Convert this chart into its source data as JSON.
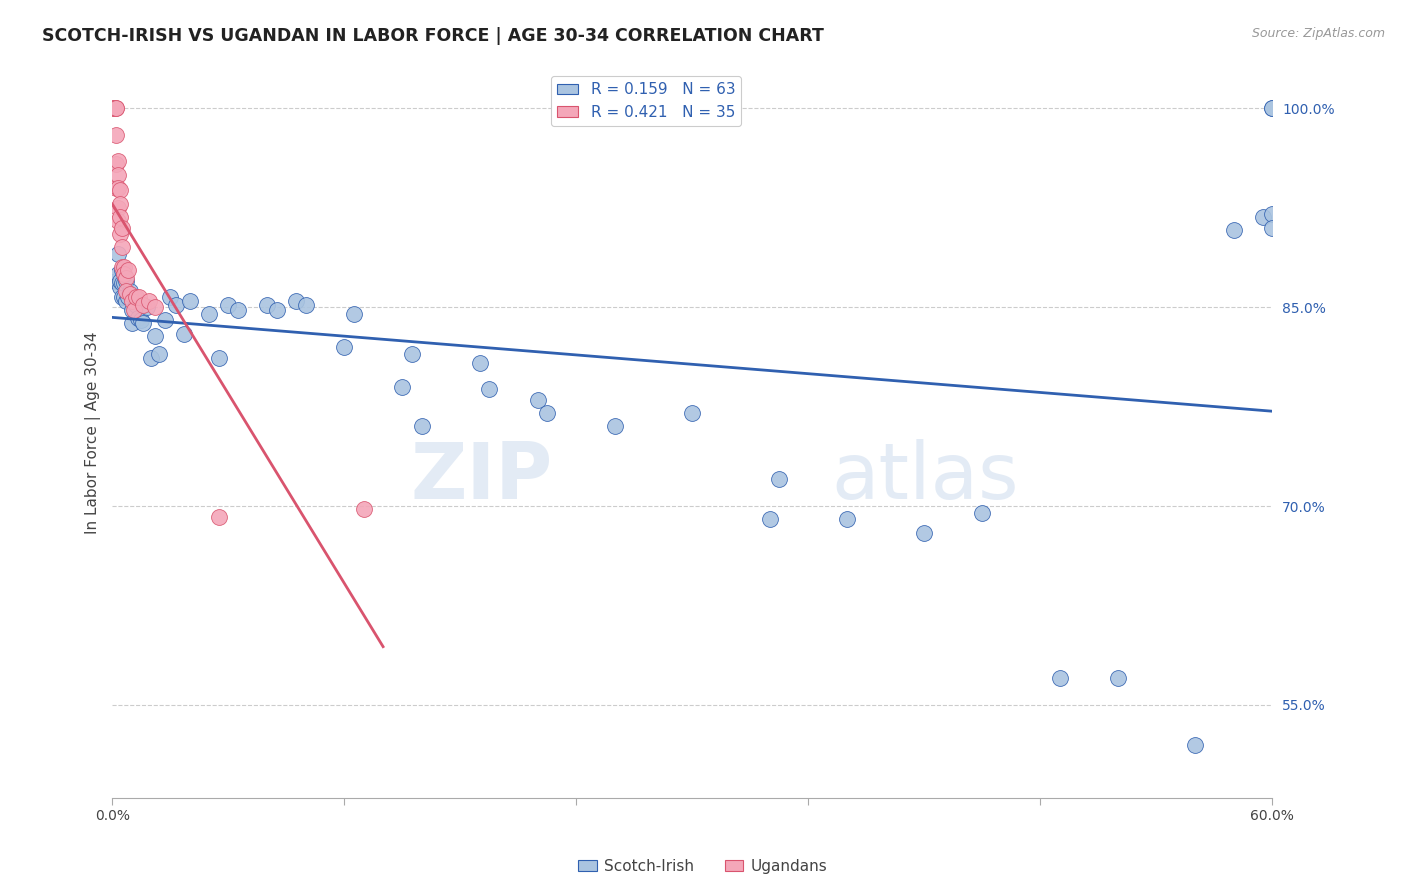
{
  "title": "SCOTCH-IRISH VS UGANDAN IN LABOR FORCE | AGE 30-34 CORRELATION CHART",
  "source": "Source: ZipAtlas.com",
  "ylabel": "In Labor Force | Age 30-34",
  "xlim": [
    0.0,
    0.6
  ],
  "ylim": [
    0.48,
    1.03
  ],
  "blue_R": 0.159,
  "blue_N": 63,
  "pink_R": 0.421,
  "pink_N": 35,
  "blue_color": "#aac4e0",
  "pink_color": "#f4a7b9",
  "blue_line_color": "#3060b0",
  "pink_line_color": "#d9546e",
  "grid_color": "#cccccc",
  "scotch_irish_x": [
    0.002,
    0.003,
    0.003,
    0.004,
    0.004,
    0.005,
    0.005,
    0.005,
    0.006,
    0.006,
    0.007,
    0.007,
    0.008,
    0.009,
    0.01,
    0.01,
    0.011,
    0.012,
    0.013,
    0.015,
    0.016,
    0.018,
    0.02,
    0.022,
    0.024,
    0.027,
    0.03,
    0.033,
    0.037,
    0.04,
    0.05,
    0.055,
    0.06,
    0.065,
    0.08,
    0.085,
    0.095,
    0.1,
    0.12,
    0.125,
    0.15,
    0.155,
    0.16,
    0.19,
    0.195,
    0.22,
    0.225,
    0.26,
    0.3,
    0.34,
    0.345,
    0.38,
    0.42,
    0.45,
    0.49,
    0.52,
    0.56,
    0.58,
    0.595,
    0.6,
    0.6,
    0.6,
    0.6
  ],
  "scotch_irish_y": [
    0.87,
    0.875,
    0.89,
    0.865,
    0.87,
    0.868,
    0.878,
    0.858,
    0.858,
    0.868,
    0.855,
    0.87,
    0.858,
    0.862,
    0.848,
    0.838,
    0.858,
    0.852,
    0.842,
    0.84,
    0.838,
    0.85,
    0.812,
    0.828,
    0.815,
    0.84,
    0.858,
    0.852,
    0.83,
    0.855,
    0.845,
    0.812,
    0.852,
    0.848,
    0.852,
    0.848,
    0.855,
    0.852,
    0.82,
    0.845,
    0.79,
    0.815,
    0.76,
    0.808,
    0.788,
    0.78,
    0.77,
    0.76,
    0.77,
    0.69,
    0.72,
    0.69,
    0.68,
    0.695,
    0.57,
    0.57,
    0.52,
    0.908,
    0.918,
    1.0,
    1.0,
    0.92,
    0.91
  ],
  "ugandan_x": [
    0.001,
    0.001,
    0.001,
    0.002,
    0.002,
    0.002,
    0.002,
    0.002,
    0.003,
    0.003,
    0.003,
    0.003,
    0.003,
    0.004,
    0.004,
    0.004,
    0.004,
    0.005,
    0.005,
    0.005,
    0.006,
    0.006,
    0.007,
    0.007,
    0.008,
    0.009,
    0.01,
    0.011,
    0.012,
    0.014,
    0.016,
    0.019,
    0.022,
    0.055,
    0.13
  ],
  "ugandan_y": [
    1.0,
    1.0,
    1.0,
    1.0,
    1.0,
    0.98,
    0.958,
    0.94,
    0.96,
    0.95,
    0.94,
    0.925,
    0.915,
    0.938,
    0.928,
    0.918,
    0.905,
    0.91,
    0.895,
    0.88,
    0.88,
    0.875,
    0.872,
    0.862,
    0.878,
    0.86,
    0.855,
    0.848,
    0.858,
    0.858,
    0.852,
    0.855,
    0.85,
    0.692,
    0.698
  ]
}
